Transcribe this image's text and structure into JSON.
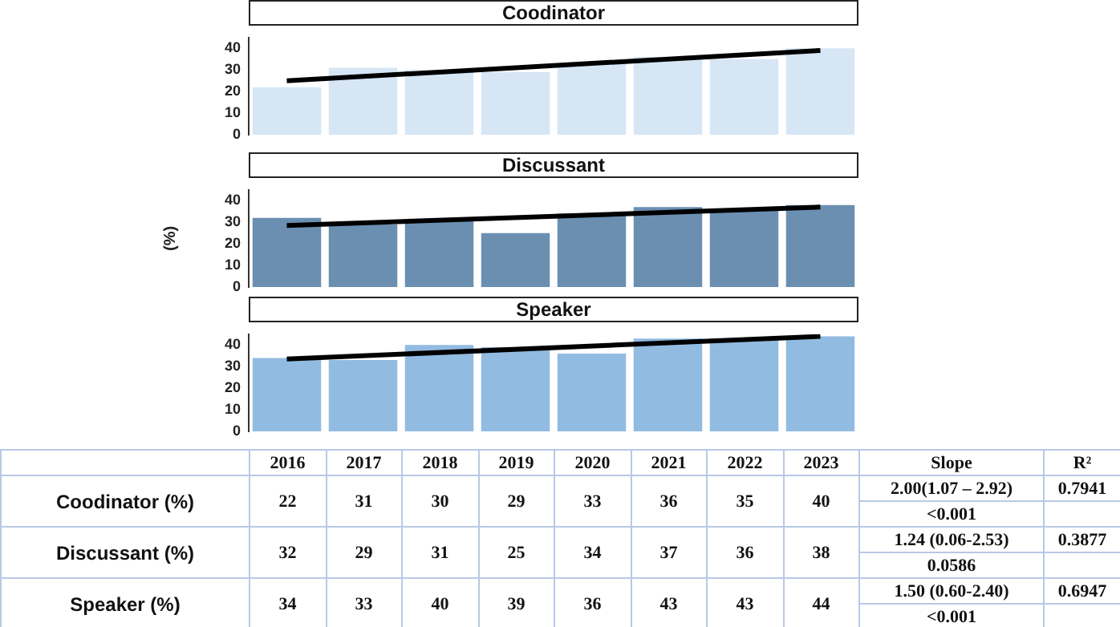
{
  "chart_data": [
    {
      "type": "bar",
      "title": "Coodinator",
      "categories": [
        "2016",
        "2017",
        "2018",
        "2019",
        "2020",
        "2021",
        "2022",
        "2023"
      ],
      "ylim": [
        0,
        45
      ],
      "yticks": [
        0,
        10,
        20,
        30,
        40
      ],
      "tick_labels": "y",
      "grid": false,
      "legend": false,
      "series": [
        {
          "type": "bar",
          "color": "#d6e6f5",
          "values": [
            22,
            31,
            30,
            29,
            33,
            36,
            35,
            40
          ],
          "value_labels": [
            "22",
            "31",
            "30",
            "29",
            "33",
            "36",
            "35",
            "40"
          ]
        },
        {
          "type": "line",
          "color": "#000000",
          "values": [
            25,
            null,
            null,
            null,
            null,
            null,
            null,
            39
          ]
        }
      ],
      "annotations": [
        "Coodinator (%)",
        "2.00(1.07 – 2.92)",
        "<0.001",
        "0.7941",
        "Slope",
        "R²"
      ]
    },
    {
      "type": "bar",
      "title": "Discussant",
      "ylabel": "(%)",
      "categories": [
        "2016",
        "2017",
        "2018",
        "2019",
        "2020",
        "2021",
        "2022",
        "2023"
      ],
      "ylim": [
        0,
        45
      ],
      "yticks": [
        0,
        10,
        20,
        30,
        40
      ],
      "tick_labels": "y",
      "grid": false,
      "legend": false,
      "series": [
        {
          "type": "bar",
          "color": "#6b8fb1",
          "values": [
            32,
            29,
            31,
            25,
            34,
            37,
            36,
            38
          ],
          "value_labels": [
            "32",
            "29",
            "31",
            "25",
            "34",
            "37",
            "36",
            "38"
          ]
        },
        {
          "type": "line",
          "color": "#000000",
          "values": [
            28.5,
            null,
            null,
            null,
            null,
            null,
            null,
            37
          ]
        }
      ],
      "annotations": [
        "Discussant (%)",
        "1.24 (0.06-2.53)",
        "0.0586",
        "0.3877"
      ]
    },
    {
      "type": "bar",
      "title": "Speaker",
      "categories": [
        "2016",
        "2017",
        "2018",
        "2019",
        "2020",
        "2021",
        "2022",
        "2023"
      ],
      "ylim": [
        0,
        45
      ],
      "yticks": [
        0,
        10,
        20,
        30,
        40
      ],
      "tick_labels": "y",
      "grid": false,
      "legend": false,
      "series": [
        {
          "type": "bar",
          "color": "#92bbe2",
          "values": [
            34,
            33,
            40,
            39,
            36,
            43,
            43,
            44
          ],
          "value_labels": [
            "34",
            "33",
            "40",
            "39",
            "36",
            "43",
            "43",
            "44"
          ]
        },
        {
          "type": "line",
          "color": "#000000",
          "values": [
            33.5,
            null,
            null,
            null,
            null,
            null,
            null,
            44
          ]
        }
      ],
      "annotations": [
        "Speaker (%)",
        "1.50 (0.60-2.40)",
        "<0.001",
        "0.6947"
      ]
    }
  ]
}
